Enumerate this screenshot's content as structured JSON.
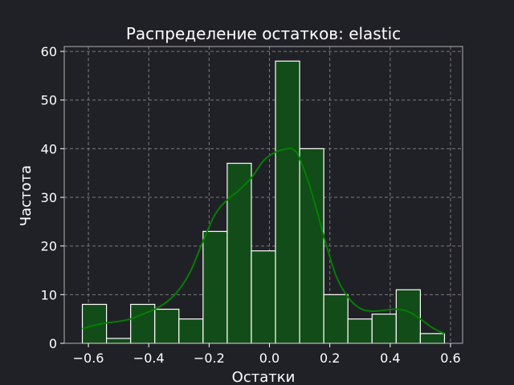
{
  "chart_data": {
    "type": "bar",
    "title": "Распределение остатков: elastic",
    "xlabel": "Остатки",
    "ylabel": "Частота",
    "xlim": [
      -0.68,
      0.64
    ],
    "ylim": [
      0,
      61
    ],
    "xticks": [
      -0.6,
      -0.4,
      -0.2,
      0.0,
      0.2,
      0.4,
      0.6
    ],
    "xtick_labels": [
      "−0.6",
      "−0.4",
      "−0.2",
      "0.0",
      "0.2",
      "0.4",
      "0.6"
    ],
    "yticks": [
      0,
      10,
      20,
      30,
      40,
      50,
      60
    ],
    "ytick_labels": [
      "0",
      "10",
      "20",
      "30",
      "40",
      "50",
      "60"
    ],
    "grid": true,
    "bins": [
      {
        "x0": -0.62,
        "x1": -0.54,
        "count": 8
      },
      {
        "x0": -0.54,
        "x1": -0.46,
        "count": 1
      },
      {
        "x0": -0.46,
        "x1": -0.38,
        "count": 8
      },
      {
        "x0": -0.38,
        "x1": -0.3,
        "count": 7
      },
      {
        "x0": -0.3,
        "x1": -0.22,
        "count": 5
      },
      {
        "x0": -0.22,
        "x1": -0.14,
        "count": 23
      },
      {
        "x0": -0.14,
        "x1": -0.06,
        "count": 37
      },
      {
        "x0": -0.06,
        "x1": 0.02,
        "count": 19
      },
      {
        "x0": 0.02,
        "x1": 0.1,
        "count": 58
      },
      {
        "x0": 0.1,
        "x1": 0.18,
        "count": 40
      },
      {
        "x0": 0.18,
        "x1": 0.26,
        "count": 10
      },
      {
        "x0": 0.26,
        "x1": 0.34,
        "count": 5
      },
      {
        "x0": 0.34,
        "x1": 0.42,
        "count": 6
      },
      {
        "x0": 0.42,
        "x1": 0.5,
        "count": 11
      },
      {
        "x0": 0.5,
        "x1": 0.58,
        "count": 2
      }
    ],
    "kde": {
      "x": [
        -0.62,
        -0.58,
        -0.54,
        -0.5,
        -0.46,
        -0.42,
        -0.38,
        -0.34,
        -0.3,
        -0.26,
        -0.22,
        -0.18,
        -0.14,
        -0.1,
        -0.06,
        -0.02,
        0.02,
        0.06,
        0.08,
        0.1,
        0.14,
        0.18,
        0.22,
        0.26,
        0.3,
        0.34,
        0.38,
        0.42,
        0.46,
        0.5,
        0.54,
        0.58
      ],
      "y": [
        3,
        3.7,
        4.2,
        4.5,
        5,
        6,
        7,
        8.5,
        11,
        15,
        21,
        26.5,
        29.5,
        31.5,
        34,
        37.5,
        39.3,
        40,
        39.8,
        38,
        31,
        22,
        14,
        9.5,
        7.2,
        6.6,
        6.8,
        7,
        6.5,
        5,
        3.2,
        2
      ]
    },
    "colors": {
      "background": "#202126",
      "bar_fill": "#124c18",
      "bar_edge": "#ffffff",
      "kde_line": "#008000",
      "grid": "#7a7a7a",
      "axes_edge": "#b0b0b0",
      "text": "#ffffff"
    }
  }
}
